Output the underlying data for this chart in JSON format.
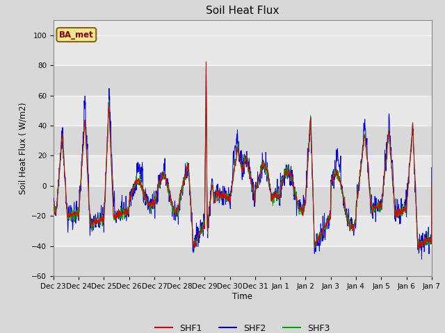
{
  "title": "Soil Heat Flux",
  "ylabel": "Soil Heat Flux ( W/m2)",
  "xlabel": "Time",
  "ylim": [
    -60,
    110
  ],
  "yticks": [
    -60,
    -40,
    -20,
    0,
    20,
    40,
    60,
    80,
    100
  ],
  "xtick_labels": [
    "Dec 23",
    "Dec 24",
    "Dec 25",
    "Dec 26",
    "Dec 27",
    "Dec 28",
    "Dec 29",
    "Dec 30",
    "Dec 31",
    "Jan 1",
    "Jan 2",
    "Jan 3",
    "Jan 4",
    "Jan 5",
    "Jan 6",
    "Jan 7"
  ],
  "colors": {
    "SHF1": "#dd0000",
    "SHF2": "#0000dd",
    "SHF3": "#00aa00"
  },
  "legend_label": "BA_met",
  "fig_bg_color": "#d8d8d8",
  "plot_bg_color": "#e8e8e8",
  "grid_color": "#ffffff",
  "alt_band_color": "#d8d8d8"
}
